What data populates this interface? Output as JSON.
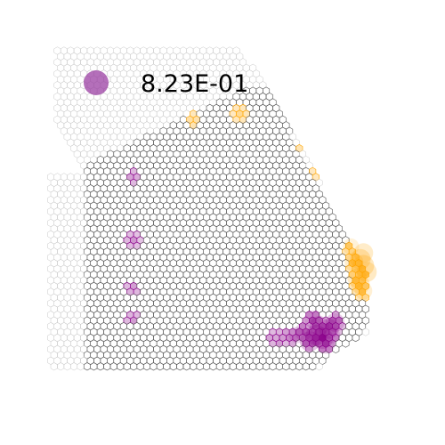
{
  "chart_data": {
    "type": "scatter",
    "subtype": "hexbin",
    "title": "",
    "xlabel": "",
    "ylabel": "",
    "axes_visible": false,
    "grid": false,
    "legend": {
      "placement": "top-left",
      "entries": [
        {
          "label": "8.23E-01",
          "color": "#9b3fa3",
          "marker": "circle"
        }
      ]
    },
    "colors": {
      "empty_hex": "#c8c8c8",
      "dark_hex": "#555555",
      "purple": "#8b008b",
      "orange": "#ffa500",
      "legend_marker": "#9b3fa3"
    },
    "series": [
      {
        "name": "",
        "color": "#8b008b",
        "x": [
          0.86,
          0.84,
          0.88,
          0.82,
          0.9,
          0.85,
          0.8,
          0.87,
          0.78,
          0.83,
          0.89,
          0.76,
          0.74,
          0.72,
          0.7,
          0.26,
          0.26,
          0.26,
          0.26
        ],
        "y": [
          0.09,
          0.1,
          0.12,
          0.08,
          0.14,
          0.13,
          0.11,
          0.07,
          0.1,
          0.15,
          0.1,
          0.09,
          0.1,
          0.08,
          0.09,
          0.6,
          0.4,
          0.25,
          0.15
        ],
        "values": [
          1.0,
          0.95,
          0.9,
          0.9,
          0.8,
          0.85,
          0.7,
          0.75,
          0.6,
          0.7,
          0.6,
          0.45,
          0.4,
          0.35,
          0.3,
          0.3,
          0.3,
          0.3,
          0.3
        ]
      },
      {
        "name": "",
        "color": "#ffa500",
        "x": [
          0.99,
          0.98,
          1.0,
          0.97,
          0.99,
          0.98,
          0.96,
          0.99,
          0.95,
          0.9,
          0.85,
          0.8,
          0.6,
          0.45
        ],
        "y": [
          0.32,
          0.34,
          0.3,
          0.28,
          0.36,
          0.26,
          0.33,
          0.24,
          0.38,
          0.52,
          0.62,
          0.7,
          0.8,
          0.78
        ],
        "values": [
          1.0,
          0.95,
          0.9,
          0.85,
          0.85,
          0.8,
          0.8,
          0.7,
          0.6,
          0.3,
          0.3,
          0.3,
          0.3,
          0.3
        ]
      }
    ]
  }
}
